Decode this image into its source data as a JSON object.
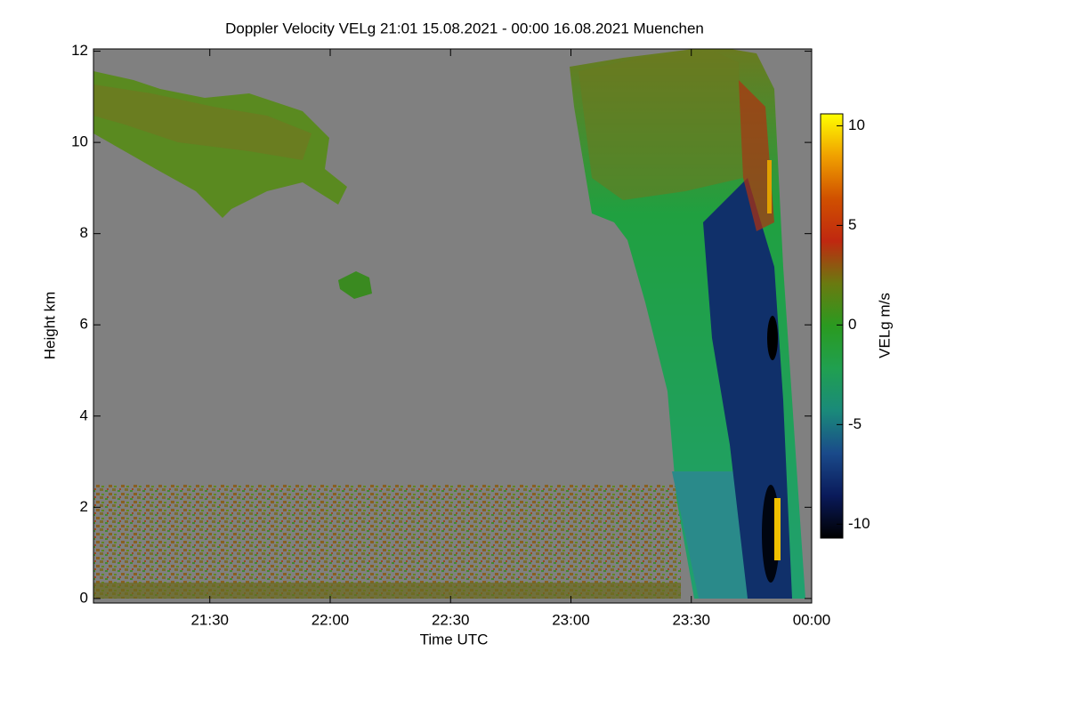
{
  "chart_data": {
    "type": "heatmap",
    "title": "Doppler Velocity VELg   21:01 15.08.2021 - 00:00 16.08.2021 Muenchen",
    "x_label": "Time UTC",
    "y_label": "Height km",
    "xlim": [
      21.0167,
      24.0
    ],
    "xticks": [
      {
        "value": 21.5,
        "label": "21:30"
      },
      {
        "value": 22.0,
        "label": "22:00"
      },
      {
        "value": 22.5,
        "label": "22:30"
      },
      {
        "value": 23.0,
        "label": "23:00"
      },
      {
        "value": 23.5,
        "label": "23:30"
      },
      {
        "value": 24.0,
        "label": "00:00"
      }
    ],
    "ylim": [
      -0.1,
      12.05
    ],
    "yticks": [
      0,
      2,
      4,
      6,
      8,
      10,
      12
    ],
    "background_color": "#808080",
    "colorbar": {
      "label": "VELg m/s",
      "clim": [
        -10.7,
        10.6
      ],
      "ticks": [
        -10,
        -5,
        0,
        5,
        10
      ],
      "colors": [
        "#000000",
        "#0a1a5a",
        "#1a4a8a",
        "#1a8a7a",
        "#20a050",
        "#2a9a20",
        "#6a7a10",
        "#c02810",
        "#d05000",
        "#f0a000",
        "#ffff00"
      ]
    }
  }
}
